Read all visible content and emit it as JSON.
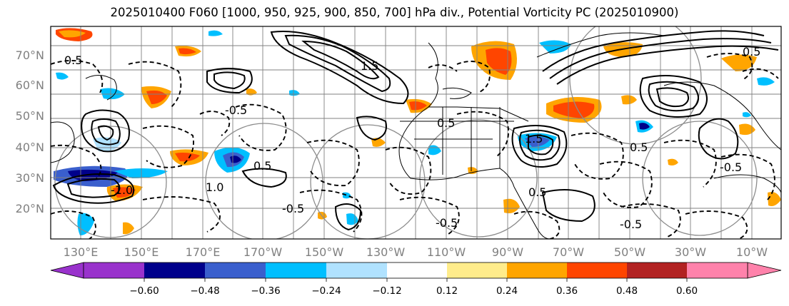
{
  "title": "2025010400 F060 [1000, 950, 925, 900, 850, 700] hPa div., Potential Vorticity PC (2025010900)",
  "map": {
    "lat_labels": [
      "70°N",
      "60°N",
      "50°N",
      "40°N",
      "30°N",
      "20°N"
    ],
    "lat_values": [
      70,
      60,
      50,
      40,
      30,
      20
    ],
    "lon_labels": [
      "130°E",
      "150°E",
      "170°E",
      "170°W",
      "150°W",
      "130°W",
      "110°W",
      "90°W",
      "70°W",
      "50°W",
      "30°W",
      "10°W"
    ],
    "contour_labels": [
      "0.5",
      "-0.5",
      "1.0",
      "-1.0",
      "0.5",
      "-0.5",
      "1.5",
      "0.5",
      "-0.5",
      "0.5",
      "1.5",
      "-0.5",
      "0.5",
      "-0.5",
      "0.5"
    ],
    "colors": {
      "land_line": "#000000",
      "grid": "#808080"
    }
  },
  "colorbar": {
    "ticks": [
      "−0.60",
      "−0.48",
      "−0.36",
      "−0.24",
      "−0.12",
      "0.12",
      "0.24",
      "0.36",
      "0.48",
      "0.60"
    ],
    "colors": [
      "#9932cc",
      "#00008b",
      "#3a5fcd",
      "#00bfff",
      "#b0e2ff",
      "#ffffff",
      "#ffec8b",
      "#ffa500",
      "#ff4500",
      "#b22222",
      "#ff82ab"
    ]
  }
}
